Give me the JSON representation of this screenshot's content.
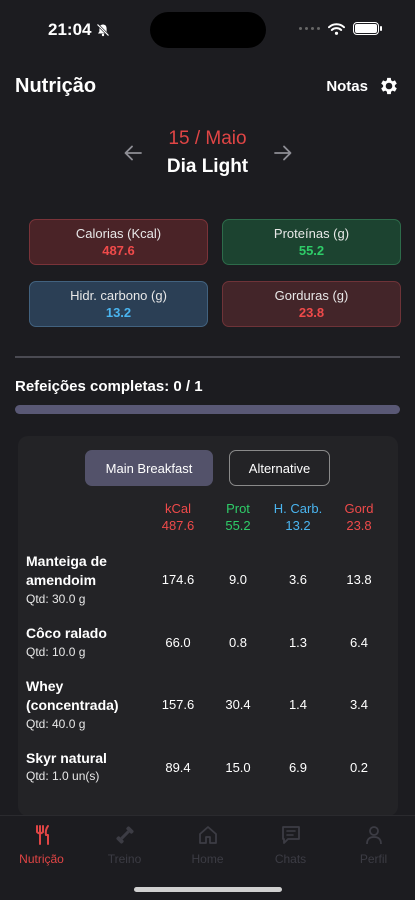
{
  "status": {
    "time": "21:04"
  },
  "header": {
    "title": "Nutrição",
    "notes_label": "Notas"
  },
  "date_nav": {
    "date": "15 / Maio",
    "day_name": "Dia Light"
  },
  "macros": {
    "kcal": {
      "label": "Calorias (Kcal)",
      "value": "487.6",
      "color": "#ef4a4a"
    },
    "protein": {
      "label": "Proteínas (g)",
      "value": "55.2",
      "color": "#2ecc68"
    },
    "carbs": {
      "label": "Hidr. carbono (g)",
      "value": "13.2",
      "color": "#4ab4ef"
    },
    "fat": {
      "label": "Gorduras (g)",
      "value": "23.8",
      "color": "#ef4a4a"
    }
  },
  "meals": {
    "title": "Refeições completas: 0 / 1",
    "completed_fraction": 0.0
  },
  "meal_panel": {
    "tabs": [
      {
        "label": "Main Breakfast",
        "selected": true
      },
      {
        "label": "Alternative",
        "selected": false
      }
    ],
    "columns": [
      {
        "label": "kCal",
        "total": "487.6",
        "color": "#ef4a4a"
      },
      {
        "label": "Prot",
        "total": "55.2",
        "color": "#2ecc68"
      },
      {
        "label": "H. Carb.",
        "total": "13.2",
        "color": "#4ab4ef"
      },
      {
        "label": "Gord",
        "total": "23.8",
        "color": "#ef4a4a"
      }
    ],
    "foods": [
      {
        "name": "Manteiga de amendoim",
        "qty": "Qtd: 30.0 g",
        "kcal": "174.6",
        "prot": "9.0",
        "carb": "3.6",
        "fat": "13.8"
      },
      {
        "name": "Côco ralado",
        "qty": "Qtd: 10.0 g",
        "kcal": "66.0",
        "prot": "0.8",
        "carb": "1.3",
        "fat": "6.4"
      },
      {
        "name": "Whey (concentrada)",
        "qty": "Qtd: 40.0 g",
        "kcal": "157.6",
        "prot": "30.4",
        "carb": "1.4",
        "fat": "3.4"
      },
      {
        "name": "Skyr natural",
        "qty": "Qtd: 1.0 un(s)",
        "kcal": "89.4",
        "prot": "15.0",
        "carb": "6.9",
        "fat": "0.2"
      }
    ]
  },
  "bottom_nav": {
    "items": [
      {
        "label": "Nutrição",
        "icon": "utensils-icon",
        "active": true
      },
      {
        "label": "Treino",
        "icon": "dumbbell-icon",
        "active": false
      },
      {
        "label": "Home",
        "icon": "home-icon",
        "active": false
      },
      {
        "label": "Chats",
        "icon": "chat-icon",
        "active": false
      },
      {
        "label": "Perfil",
        "icon": "person-icon",
        "active": false
      }
    ],
    "active_color": "#e04545"
  }
}
